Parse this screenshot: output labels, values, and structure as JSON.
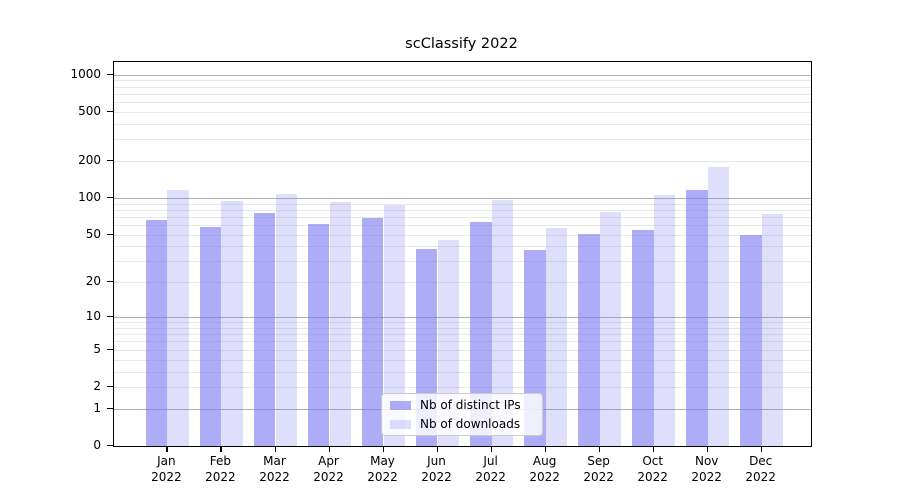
{
  "title": "scClassify 2022",
  "chart_data": {
    "type": "bar",
    "title": "scClassify 2022",
    "yscale": "log1p",
    "grid": true,
    "legend_position": "lower center",
    "categories": [
      "Jan",
      "Feb",
      "Mar",
      "Apr",
      "May",
      "Jun",
      "Jul",
      "Aug",
      "Sep",
      "Oct",
      "Nov",
      "Dec"
    ],
    "x_tick_year": "2022",
    "y_ticks": [
      0,
      1,
      2,
      5,
      10,
      20,
      50,
      100,
      200,
      500,
      1000
    ],
    "ylim": [
      0,
      1240
    ],
    "series": [
      {
        "name": "Nb of distinct IPs",
        "color": "#7a7af2",
        "alpha": 0.62,
        "values": [
          66,
          58,
          75,
          61,
          68,
          38,
          63,
          37,
          51,
          55,
          115,
          50
        ]
      },
      {
        "name": "Nb of downloads",
        "color": "#7a7af2",
        "alpha": 0.24,
        "values": [
          116,
          95,
          107,
          93,
          88,
          45,
          96,
          57,
          77,
          106,
          180,
          74
        ]
      }
    ]
  },
  "colors": {
    "major_grid": "#b0b0b0",
    "minor_grid": "#e8e8e8",
    "axis": "#000000",
    "text": "#1a1a1a"
  }
}
